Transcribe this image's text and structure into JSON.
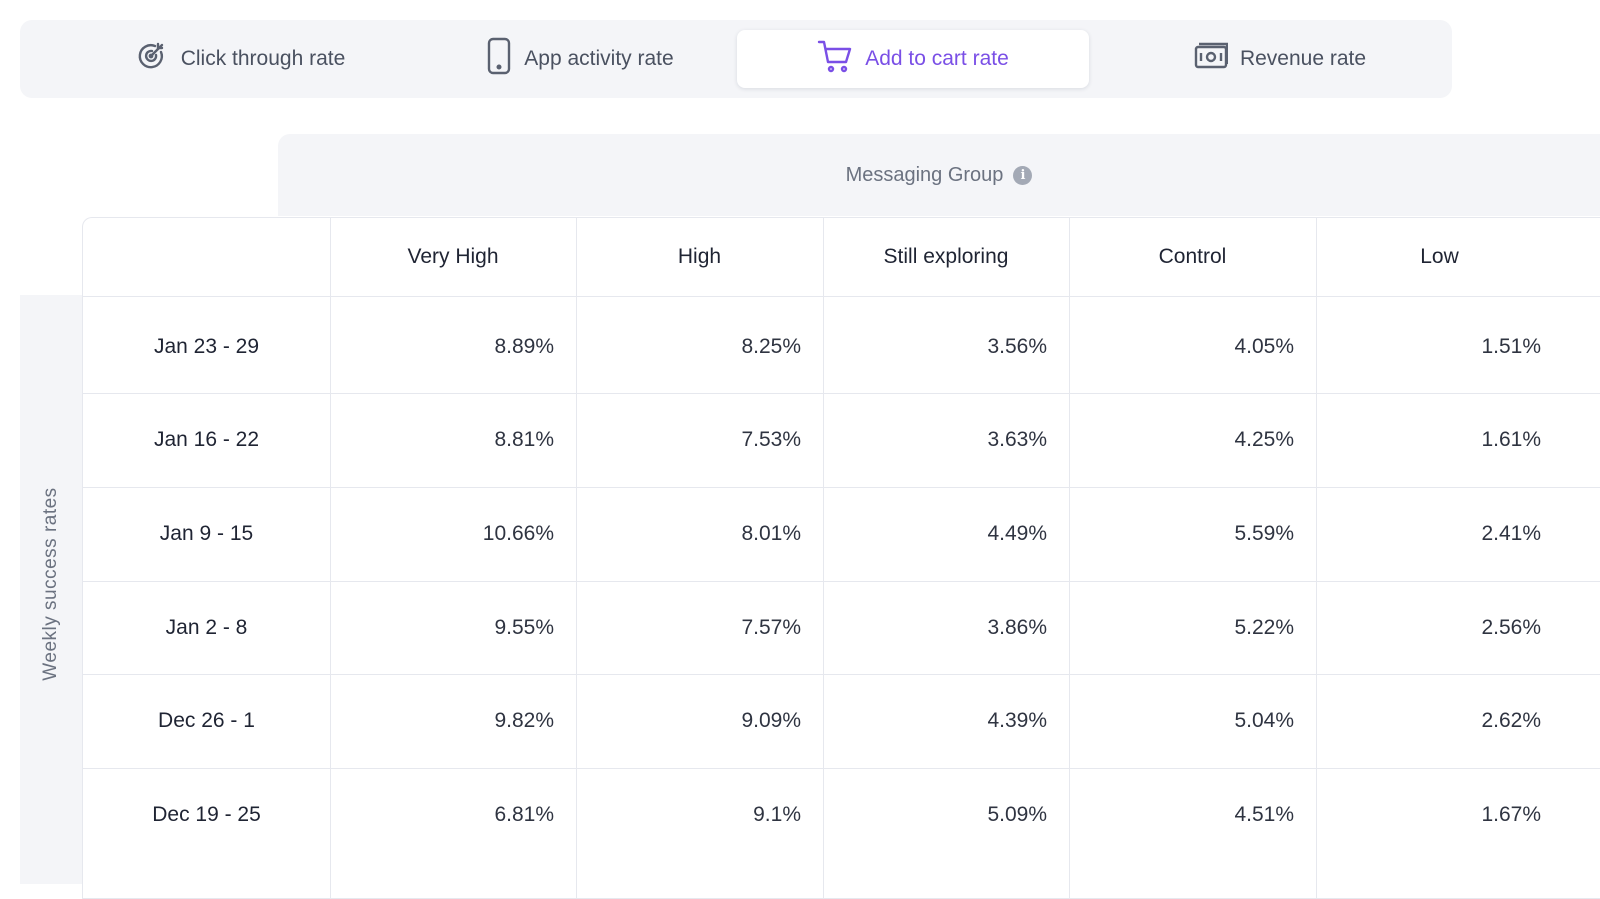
{
  "tabs": [
    {
      "label": "Click through rate",
      "icon": "target-icon",
      "active": false
    },
    {
      "label": "App activity rate",
      "icon": "phone-icon",
      "active": false
    },
    {
      "label": "Add to cart rate",
      "icon": "cart-icon",
      "active": true
    },
    {
      "label": "Revenue rate",
      "icon": "money-icon",
      "active": false
    }
  ],
  "group_header": {
    "label": "Messaging Group",
    "info_icon": "info-icon"
  },
  "side_label": "Weekly success rates",
  "table": {
    "columns": [
      "Very High",
      "High",
      "Still exploring",
      "Control",
      "Low"
    ],
    "rows": [
      {
        "label": "Jan 23 - 29",
        "values": [
          "8.89%",
          "8.25%",
          "3.56%",
          "4.05%",
          "1.51%"
        ]
      },
      {
        "label": "Jan 16 - 22",
        "values": [
          "8.81%",
          "7.53%",
          "3.63%",
          "4.25%",
          "1.61%"
        ]
      },
      {
        "label": "Jan 9 - 15",
        "values": [
          "10.66%",
          "8.01%",
          "4.49%",
          "5.59%",
          "2.41%"
        ]
      },
      {
        "label": "Jan 2 - 8",
        "values": [
          "9.55%",
          "7.57%",
          "3.86%",
          "5.22%",
          "2.56%"
        ]
      },
      {
        "label": "Dec 26 - 1",
        "values": [
          "9.82%",
          "9.09%",
          "4.39%",
          "5.04%",
          "2.62%"
        ]
      },
      {
        "label": "Dec 19 - 25",
        "values": [
          "6.81%",
          "9.1%",
          "5.09%",
          "4.51%",
          "1.67%"
        ]
      }
    ]
  },
  "colors": {
    "accent": "#7a4fe6",
    "panel": "#f4f5f8",
    "border": "#e6e8ee"
  }
}
